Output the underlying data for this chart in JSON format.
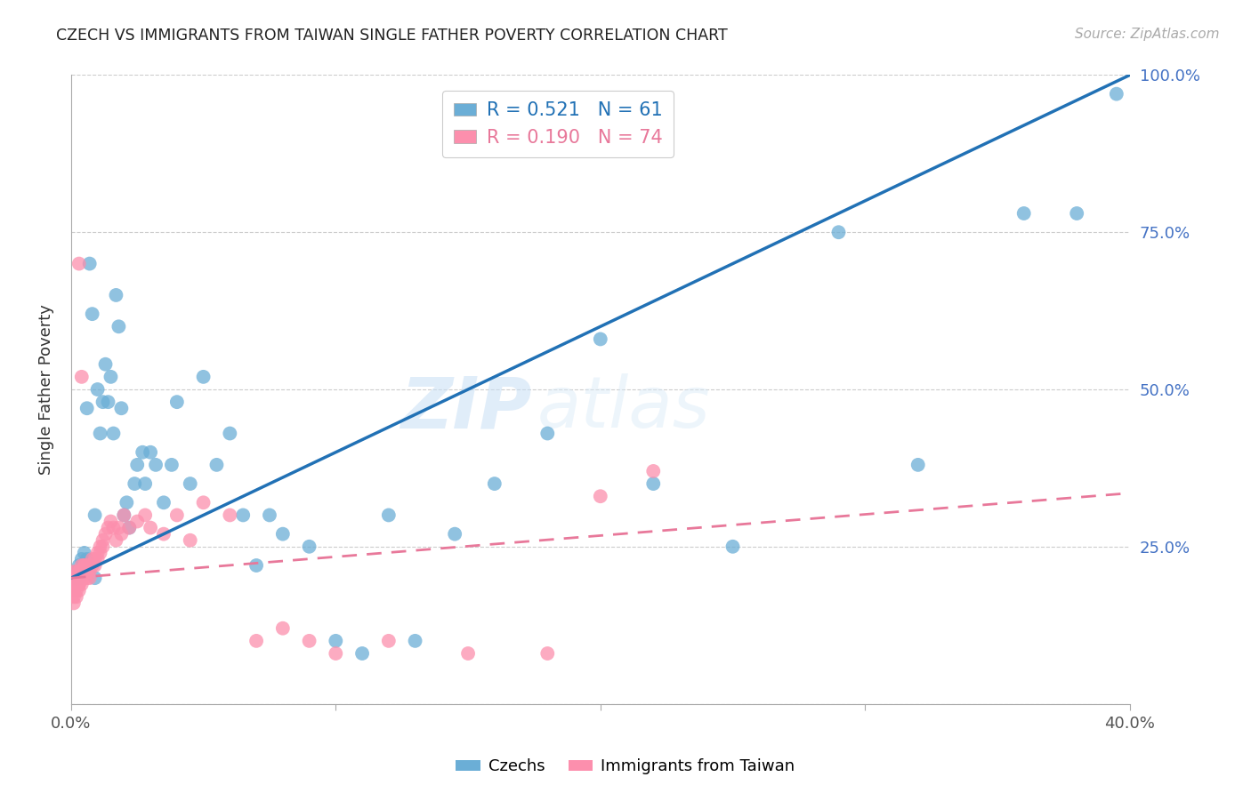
{
  "title": "CZECH VS IMMIGRANTS FROM TAIWAN SINGLE FATHER POVERTY CORRELATION CHART",
  "source": "Source: ZipAtlas.com",
  "ylabel": "Single Father Poverty",
  "x_min": 0.0,
  "x_max": 0.4,
  "y_min": 0.0,
  "y_max": 1.0,
  "x_ticks": [
    0.0,
    0.1,
    0.2,
    0.3,
    0.4
  ],
  "x_tick_labels": [
    "0.0%",
    "",
    "",
    "",
    "40.0%"
  ],
  "y_ticks": [
    0.0,
    0.25,
    0.5,
    0.75,
    1.0
  ],
  "y_tick_labels": [
    "",
    "25.0%",
    "50.0%",
    "75.0%",
    "100.0%"
  ],
  "czech_color": "#6baed6",
  "taiwan_color": "#fc8fad",
  "czech_line_color": "#2171b5",
  "taiwan_line_color": "#e8789a",
  "legend_czech_R": "0.521",
  "legend_czech_N": "61",
  "legend_taiwan_R": "0.190",
  "legend_taiwan_N": "74",
  "watermark_zip": "ZIP",
  "watermark_atlas": "atlas",
  "czech_line_y0": 0.2,
  "czech_line_y1": 1.0,
  "taiwan_line_y0": 0.2,
  "taiwan_line_y1": 0.335,
  "czech_x": [
    0.001,
    0.002,
    0.002,
    0.003,
    0.003,
    0.004,
    0.004,
    0.005,
    0.005,
    0.006,
    0.006,
    0.007,
    0.008,
    0.009,
    0.009,
    0.01,
    0.011,
    0.012,
    0.013,
    0.014,
    0.015,
    0.016,
    0.017,
    0.018,
    0.019,
    0.02,
    0.021,
    0.022,
    0.024,
    0.025,
    0.027,
    0.028,
    0.03,
    0.032,
    0.035,
    0.038,
    0.04,
    0.045,
    0.05,
    0.055,
    0.06,
    0.065,
    0.07,
    0.075,
    0.08,
    0.09,
    0.1,
    0.11,
    0.12,
    0.13,
    0.145,
    0.16,
    0.18,
    0.2,
    0.22,
    0.25,
    0.29,
    0.32,
    0.36,
    0.38,
    0.395
  ],
  "czech_y": [
    0.2,
    0.21,
    0.2,
    0.22,
    0.2,
    0.23,
    0.21,
    0.22,
    0.24,
    0.23,
    0.47,
    0.7,
    0.62,
    0.2,
    0.3,
    0.5,
    0.43,
    0.48,
    0.54,
    0.48,
    0.52,
    0.43,
    0.65,
    0.6,
    0.47,
    0.3,
    0.32,
    0.28,
    0.35,
    0.38,
    0.4,
    0.35,
    0.4,
    0.38,
    0.32,
    0.38,
    0.48,
    0.35,
    0.52,
    0.38,
    0.43,
    0.3,
    0.22,
    0.3,
    0.27,
    0.25,
    0.1,
    0.08,
    0.3,
    0.1,
    0.27,
    0.35,
    0.43,
    0.58,
    0.35,
    0.25,
    0.75,
    0.38,
    0.78,
    0.78,
    0.97
  ],
  "taiwan_x": [
    0.001,
    0.001,
    0.001,
    0.001,
    0.001,
    0.001,
    0.002,
    0.002,
    0.002,
    0.002,
    0.002,
    0.002,
    0.002,
    0.003,
    0.003,
    0.003,
    0.003,
    0.003,
    0.003,
    0.003,
    0.004,
    0.004,
    0.004,
    0.004,
    0.004,
    0.005,
    0.005,
    0.005,
    0.005,
    0.006,
    0.006,
    0.006,
    0.006,
    0.007,
    0.007,
    0.007,
    0.008,
    0.008,
    0.009,
    0.009,
    0.01,
    0.01,
    0.011,
    0.011,
    0.012,
    0.012,
    0.013,
    0.014,
    0.015,
    0.016,
    0.017,
    0.018,
    0.019,
    0.02,
    0.022,
    0.025,
    0.028,
    0.03,
    0.035,
    0.04,
    0.045,
    0.05,
    0.06,
    0.07,
    0.08,
    0.09,
    0.1,
    0.12,
    0.15,
    0.18,
    0.2,
    0.22,
    0.003,
    0.004
  ],
  "taiwan_y": [
    0.18,
    0.17,
    0.16,
    0.2,
    0.19,
    0.21,
    0.2,
    0.19,
    0.18,
    0.17,
    0.21,
    0.2,
    0.19,
    0.21,
    0.2,
    0.19,
    0.18,
    0.21,
    0.2,
    0.19,
    0.22,
    0.21,
    0.2,
    0.19,
    0.21,
    0.22,
    0.21,
    0.2,
    0.22,
    0.22,
    0.21,
    0.2,
    0.21,
    0.22,
    0.21,
    0.2,
    0.23,
    0.22,
    0.23,
    0.22,
    0.24,
    0.23,
    0.25,
    0.24,
    0.26,
    0.25,
    0.27,
    0.28,
    0.29,
    0.28,
    0.26,
    0.28,
    0.27,
    0.3,
    0.28,
    0.29,
    0.3,
    0.28,
    0.27,
    0.3,
    0.26,
    0.32,
    0.3,
    0.1,
    0.12,
    0.1,
    0.08,
    0.1,
    0.08,
    0.08,
    0.33,
    0.37,
    0.7,
    0.52
  ]
}
